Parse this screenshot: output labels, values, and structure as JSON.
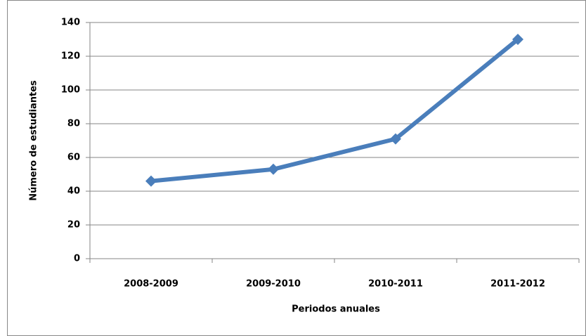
{
  "chart_data": {
    "type": "line",
    "categories": [
      "2008-2009",
      "2009-2010",
      "2010-2011",
      "2011-2012"
    ],
    "series": [
      {
        "name": "Número de estudiantes",
        "color": "#4a7ebb",
        "values": [
          46,
          53,
          71,
          130
        ]
      }
    ],
    "xlabel": "Periodos anuales",
    "ylabel": "Número de estudiantes",
    "ylim": [
      0,
      140
    ],
    "yticks": [
      0,
      20,
      40,
      60,
      80,
      100,
      120,
      140
    ],
    "grid": true
  }
}
